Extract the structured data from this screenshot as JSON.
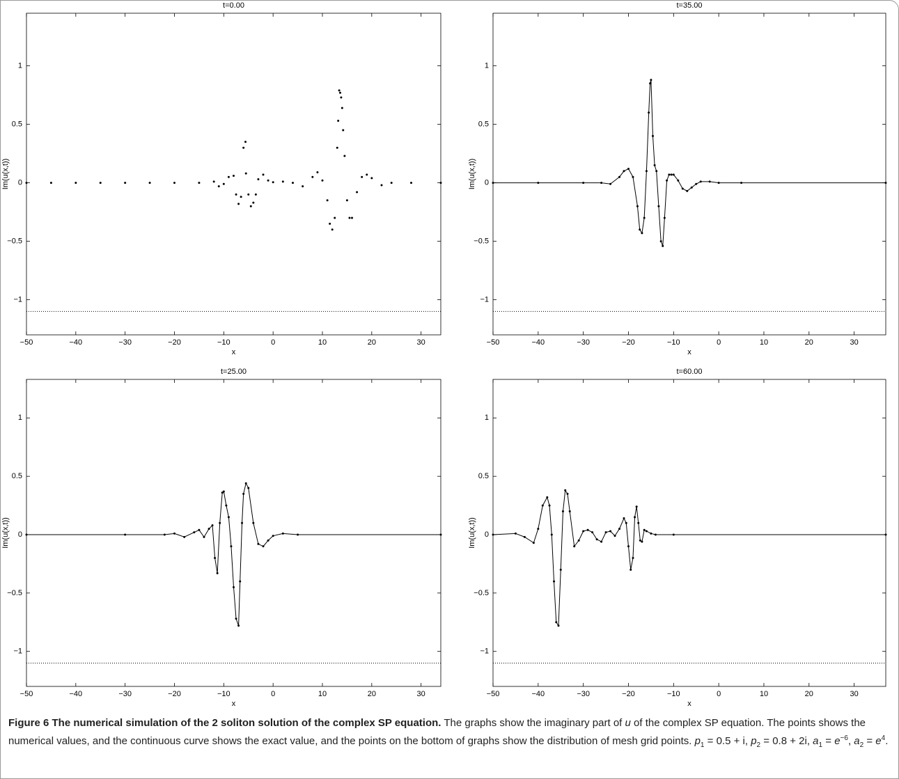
{
  "chart_data": [
    {
      "type": "line",
      "title": "t=0.00",
      "xlabel": "x",
      "ylabel": "Im(u(x,t))",
      "xlim": [
        -50,
        34
      ],
      "ylim": [
        -1.3,
        1.45
      ],
      "xticks": [
        {
          "value": -50,
          "label": "−50"
        },
        {
          "value": -40,
          "label": "−40"
        },
        {
          "value": -30,
          "label": "−30"
        },
        {
          "value": -20,
          "label": "−20"
        },
        {
          "value": -10,
          "label": "−10"
        },
        0,
        10,
        20,
        30
      ],
      "yticks": [
        {
          "value": -1,
          "label": "−1"
        },
        {
          "value": -0.5,
          "label": "−0.5"
        },
        0,
        0.5,
        1
      ],
      "series": [
        {
          "color": "#000000",
          "line": false,
          "marker": true,
          "x": [
            -50,
            -45,
            -40,
            -35,
            -30,
            -25,
            -20,
            -15,
            -12,
            -11,
            -10,
            -9,
            -8,
            -7.5,
            -7,
            -6.5,
            -6,
            -5.6,
            -5.5,
            -5,
            -4.5,
            -4,
            -3.5,
            -3,
            -2,
            -1,
            0,
            2,
            4,
            6,
            8,
            9,
            10,
            11,
            11.5,
            12,
            12.5,
            13,
            13.2,
            13.4,
            13.6,
            13.8,
            14,
            14.2,
            14.5,
            15,
            15.5,
            16,
            17,
            18,
            19,
            20,
            22,
            24,
            28,
            34
          ],
          "values": [
            0,
            0,
            0,
            0,
            0,
            0,
            0,
            0,
            0.01,
            -0.03,
            -0.01,
            0.05,
            0.06,
            -0.1,
            -0.18,
            -0.12,
            0.3,
            0.35,
            0.08,
            -0.1,
            -0.2,
            -0.17,
            -0.1,
            0.03,
            0.07,
            0.02,
            0.005,
            0.01,
            0,
            -0.03,
            0.05,
            0.09,
            0.02,
            -0.15,
            -0.35,
            -0.4,
            -0.3,
            0.3,
            0.53,
            0.79,
            0.77,
            0.73,
            0.64,
            0.45,
            0.23,
            -0.15,
            -0.3,
            -0.3,
            -0.08,
            0.05,
            0.07,
            0.04,
            -0.02,
            0,
            0,
            0
          ]
        },
        {
          "color": "#000000",
          "line": true,
          "marker": false,
          "dash": "1,2",
          "x": [
            -50,
            34
          ],
          "values": [
            -1.1,
            -1.1
          ]
        }
      ]
    },
    {
      "type": "line",
      "title": "t=35.00",
      "xlabel": "x",
      "ylabel": "Im(u(x,t))",
      "xlim": [
        -50,
        37
      ],
      "ylim": [
        -1.3,
        1.45
      ],
      "xticks": [
        {
          "value": -50,
          "label": "−50"
        },
        {
          "value": -40,
          "label": "−40"
        },
        {
          "value": -30,
          "label": "−30"
        },
        {
          "value": -20,
          "label": "−20"
        },
        {
          "value": -10,
          "label": "−10"
        },
        0,
        10,
        20,
        30
      ],
      "yticks": [
        {
          "value": -1,
          "label": "−1"
        },
        {
          "value": -0.5,
          "label": "−0.5"
        },
        0,
        0.5,
        1
      ],
      "series": [
        {
          "color": "#000000",
          "line": true,
          "marker": true,
          "x": [
            -50,
            -40,
            -30,
            -26,
            -24,
            -22,
            -21,
            -20,
            -19,
            -18,
            -17.5,
            -17,
            -16.5,
            -16,
            -15.5,
            -15.2,
            -15,
            -14.6,
            -14.2,
            -13.8,
            -13.3,
            -12.8,
            -12.4,
            -12,
            -11.5,
            -11,
            -10.5,
            -10,
            -9,
            -8,
            -7,
            -6,
            -5,
            -4,
            -2,
            0,
            5,
            37
          ],
          "values": [
            0,
            0,
            0,
            0,
            -0.01,
            0.05,
            0.1,
            0.12,
            0.05,
            -0.2,
            -0.4,
            -0.43,
            -0.3,
            0.1,
            0.6,
            0.85,
            0.88,
            0.4,
            0.15,
            0.1,
            -0.2,
            -0.5,
            -0.54,
            -0.3,
            0.02,
            0.07,
            0.07,
            0.07,
            0.02,
            -0.05,
            -0.07,
            -0.04,
            -0.01,
            0.01,
            0.01,
            0,
            0,
            0
          ]
        },
        {
          "color": "#000000",
          "line": true,
          "marker": false,
          "dash": "1,2",
          "x": [
            -50,
            37
          ],
          "values": [
            -1.1,
            -1.1
          ]
        }
      ]
    },
    {
      "type": "line",
      "title": "t=25.00",
      "xlabel": "x",
      "ylabel": "Im(u(x,t))",
      "xlim": [
        -50,
        34
      ],
      "ylim": [
        -1.3,
        1.33
      ],
      "xticks": [
        {
          "value": -50,
          "label": "−50"
        },
        {
          "value": -40,
          "label": "−40"
        },
        {
          "value": -30,
          "label": "−30"
        },
        {
          "value": -20,
          "label": "−20"
        },
        {
          "value": -10,
          "label": "−10"
        },
        0,
        10,
        20,
        30
      ],
      "yticks": [
        {
          "value": -1,
          "label": "−1"
        },
        {
          "value": -0.5,
          "label": "−0.5"
        },
        0,
        0.5,
        1
      ],
      "series": [
        {
          "color": "#000000",
          "line": true,
          "marker": true,
          "x": [
            -50,
            -30,
            -22,
            -20,
            -18,
            -16,
            -15,
            -14,
            -13,
            -12.3,
            -11.8,
            -11.3,
            -10.8,
            -10.3,
            -10,
            -9.5,
            -9,
            -8.5,
            -8,
            -7.5,
            -7,
            -6.7,
            -6.3,
            -6,
            -5.5,
            -5,
            -4,
            -3,
            -2,
            -1,
            0,
            2,
            5,
            34
          ],
          "values": [
            0,
            0,
            0,
            0.01,
            -0.02,
            0.02,
            0.04,
            -0.02,
            0.05,
            0.08,
            -0.2,
            -0.33,
            0.1,
            0.36,
            0.37,
            0.25,
            0.15,
            -0.1,
            -0.45,
            -0.72,
            -0.78,
            -0.4,
            0.1,
            0.35,
            0.44,
            0.4,
            0.1,
            -0.08,
            -0.1,
            -0.05,
            -0.01,
            0.01,
            0,
            0
          ]
        },
        {
          "color": "#000000",
          "line": true,
          "marker": false,
          "dash": "1,2",
          "x": [
            -50,
            34
          ],
          "values": [
            -1.1,
            -1.1
          ]
        }
      ]
    },
    {
      "type": "line",
      "title": "t=60.00",
      "xlabel": "x",
      "ylabel": "Im(u(x,t))",
      "xlim": [
        -50,
        37
      ],
      "ylim": [
        -1.3,
        1.33
      ],
      "xticks": [
        {
          "value": -50,
          "label": "−50"
        },
        {
          "value": -40,
          "label": "−40"
        },
        {
          "value": -30,
          "label": "−30"
        },
        {
          "value": -20,
          "label": "−20"
        },
        {
          "value": -10,
          "label": "−10"
        },
        0,
        10,
        20,
        30
      ],
      "yticks": [
        {
          "value": -1,
          "label": "−1"
        },
        {
          "value": -0.5,
          "label": "−0.5"
        },
        0,
        0.5,
        1
      ],
      "series": [
        {
          "color": "#000000",
          "line": true,
          "marker": true,
          "x": [
            -50,
            -45,
            -43,
            -41,
            -40,
            -39,
            -38,
            -37.5,
            -37,
            -36.5,
            -36,
            -35.5,
            -35,
            -34.5,
            -34,
            -33.5,
            -33,
            -32,
            -31,
            -30,
            -29,
            -28,
            -27,
            -26,
            -25,
            -24,
            -23,
            -22,
            -21,
            -20.5,
            -20,
            -19.5,
            -19,
            -18.6,
            -18.2,
            -17.8,
            -17.4,
            -17,
            -16.5,
            -16,
            -15,
            -14,
            -10,
            37
          ],
          "values": [
            0,
            0.01,
            -0.02,
            -0.07,
            0.05,
            0.25,
            0.32,
            0.25,
            0,
            -0.4,
            -0.75,
            -0.78,
            -0.3,
            0.2,
            0.38,
            0.35,
            0.2,
            -0.1,
            -0.05,
            0.03,
            0.04,
            0.02,
            -0.04,
            -0.06,
            0.02,
            0.03,
            -0.01,
            0.05,
            0.14,
            0.1,
            -0.1,
            -0.3,
            -0.2,
            0.15,
            0.24,
            0.1,
            -0.05,
            -0.06,
            0.04,
            0.03,
            0.01,
            0,
            0,
            0
          ]
        },
        {
          "color": "#000000",
          "line": true,
          "marker": false,
          "dash": "1,2",
          "x": [
            -50,
            37
          ],
          "values": [
            -1.1,
            -1.1
          ]
        }
      ]
    }
  ],
  "caption": {
    "title": "Figure 6 The numerical simulation of the 2 soliton solution of the complex SP equation.",
    "segments": [
      {
        "text": " The graphs show the imaginary part of ",
        "style": "normal"
      },
      {
        "text": "u",
        "style": "italic"
      },
      {
        "text": " of the complex SP equation. The points shows the numerical values, and the continuous curve shows the exact value, and the points on the bottom of graphs show the distribution of mesh grid points. ",
        "style": "normal"
      },
      {
        "text": "p",
        "style": "italic"
      },
      {
        "text": "1",
        "style": "sub"
      },
      {
        "text": " = 0.5 + i, ",
        "style": "normal"
      },
      {
        "text": "p",
        "style": "italic"
      },
      {
        "text": "2",
        "style": "sub"
      },
      {
        "text": " = 0.8 + 2i, ",
        "style": "normal"
      },
      {
        "text": "a",
        "style": "italic"
      },
      {
        "text": "1",
        "style": "sub"
      },
      {
        "text": " = ",
        "style": "normal"
      },
      {
        "text": "e",
        "style": "italic"
      },
      {
        "text": "−6",
        "style": "sup"
      },
      {
        "text": ", ",
        "style": "normal"
      },
      {
        "text": "a",
        "style": "italic"
      },
      {
        "text": "2",
        "style": "sub"
      },
      {
        "text": " = ",
        "style": "normal"
      },
      {
        "text": "e",
        "style": "italic"
      },
      {
        "text": "4",
        "style": "sup"
      },
      {
        "text": ".",
        "style": "normal"
      }
    ]
  }
}
